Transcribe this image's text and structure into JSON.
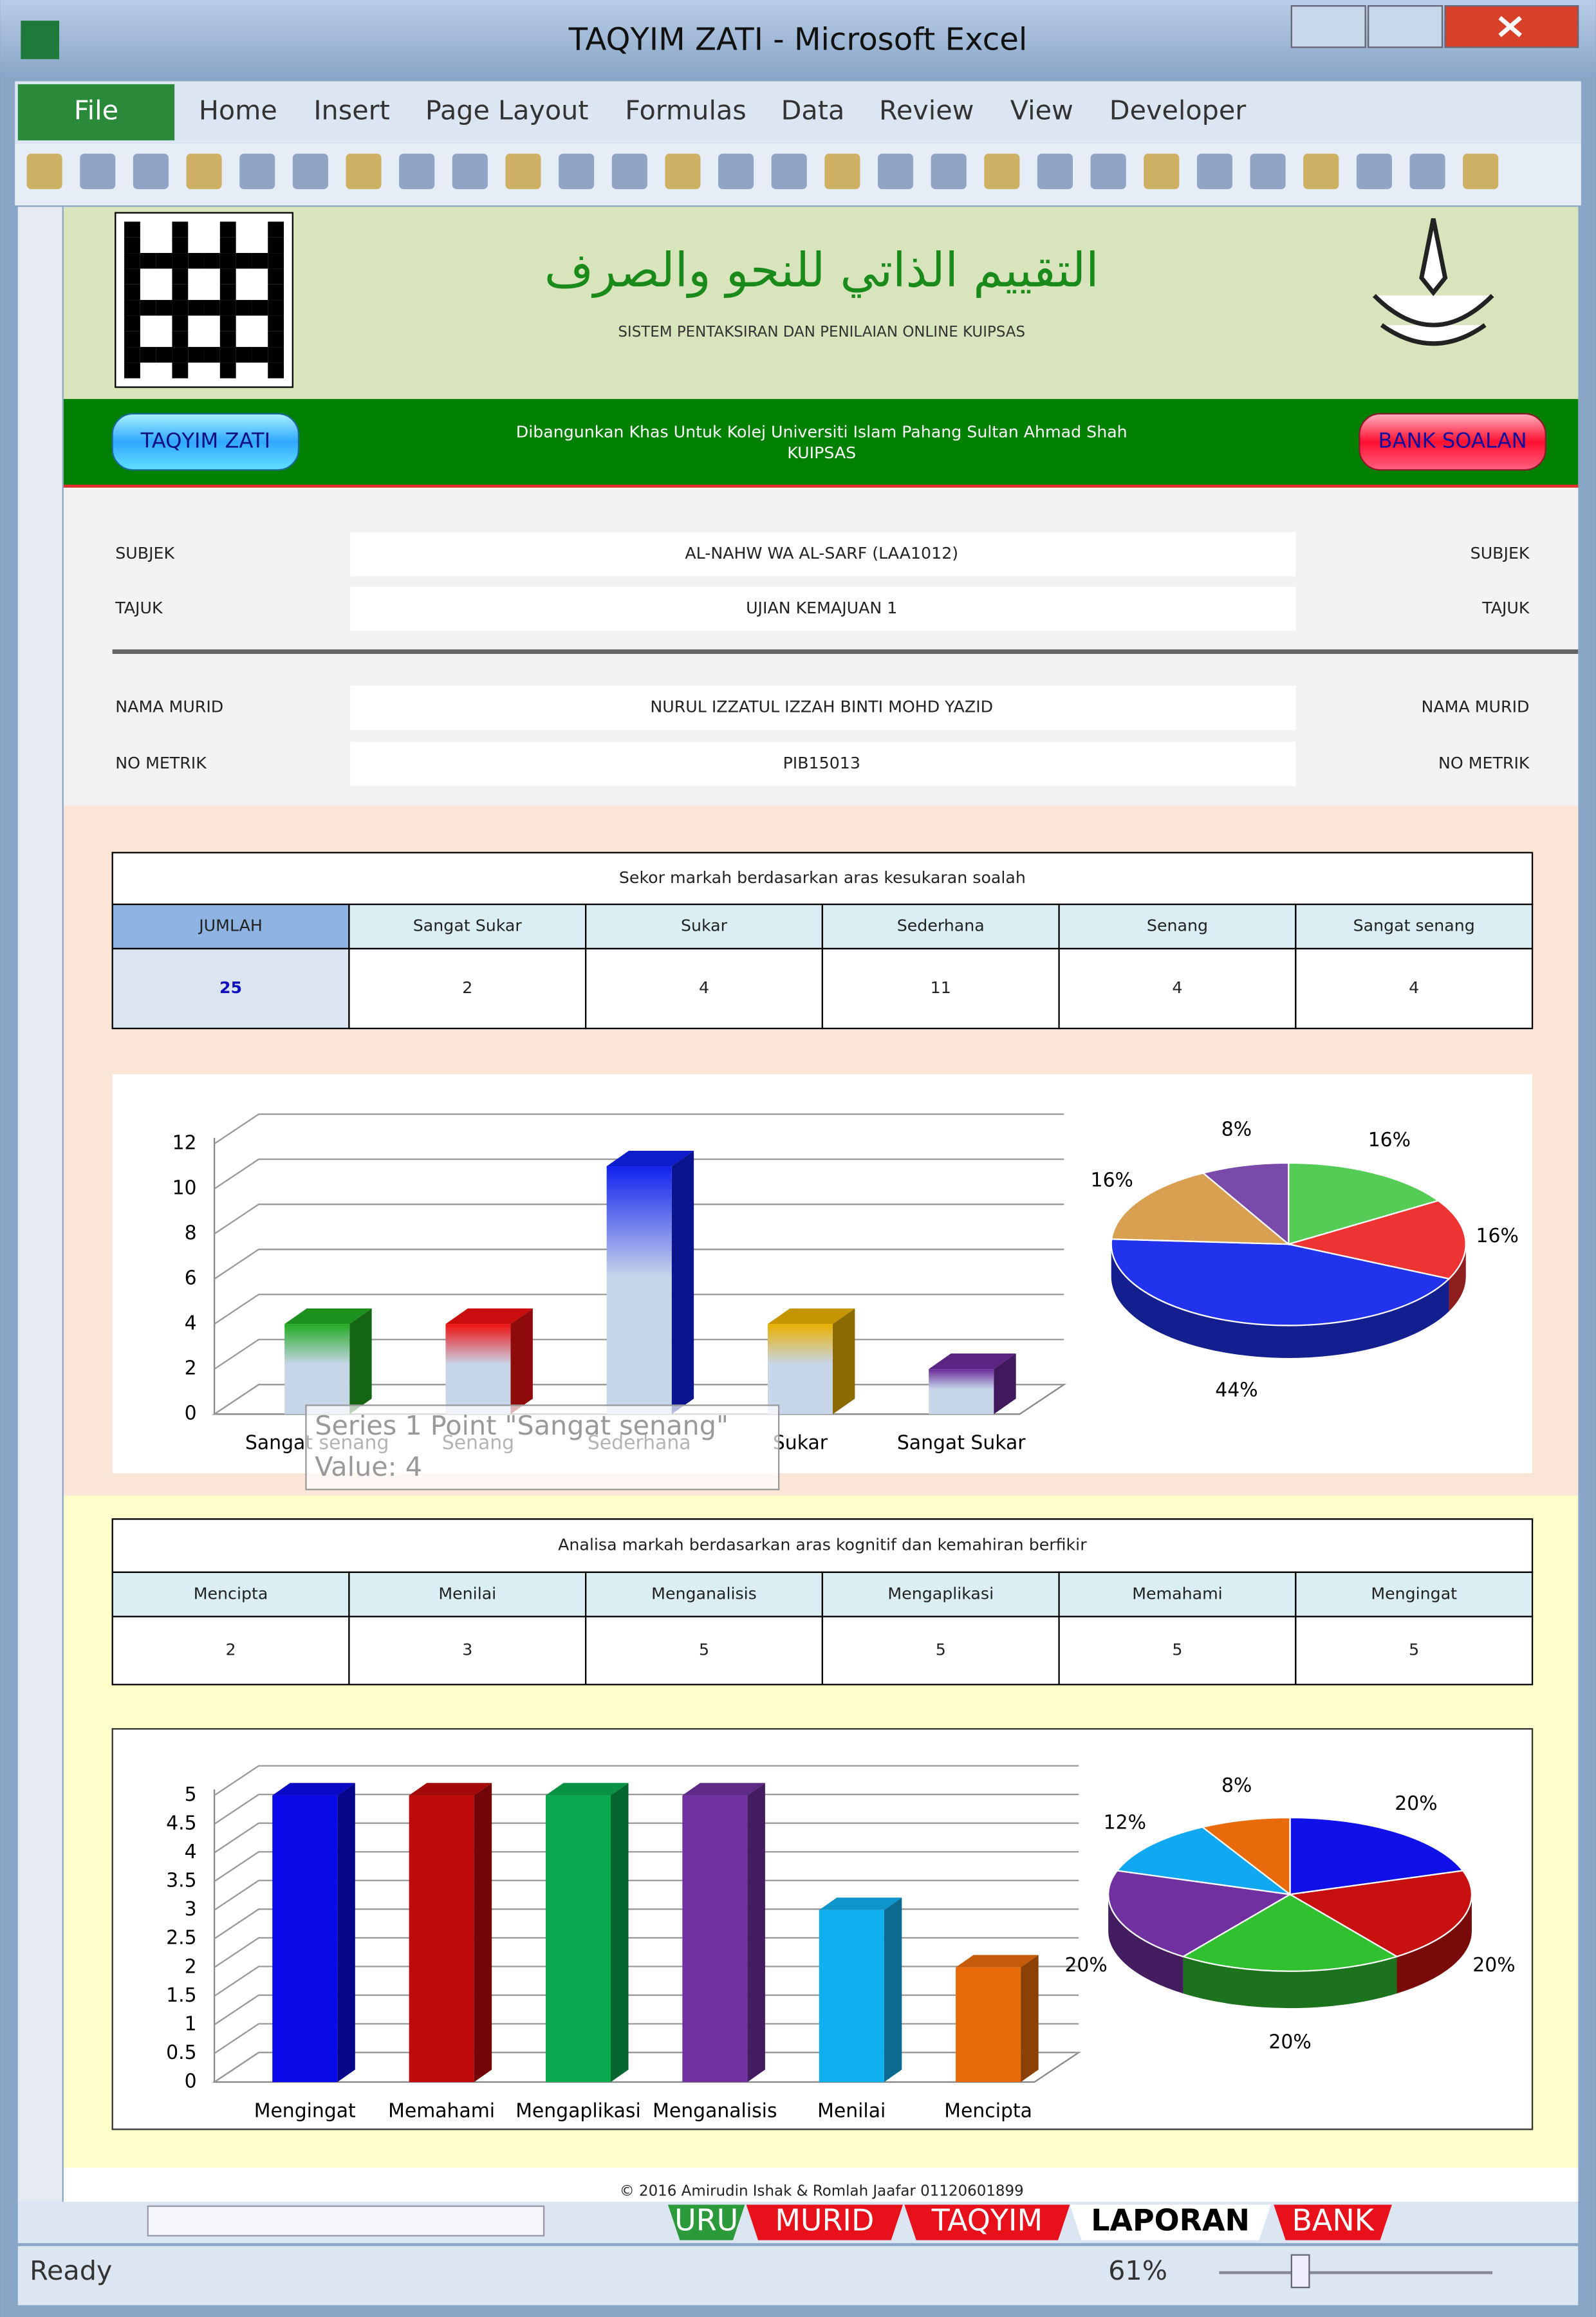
{
  "window": {
    "title": "TAQYIM ZATI  -  Microsoft Excel"
  },
  "ribbon": {
    "file": "File",
    "tabs": [
      "Home",
      "Insert",
      "Page Layout",
      "Formulas",
      "Data",
      "Review",
      "View",
      "Developer"
    ]
  },
  "header": {
    "title_ar": "التقييم الذاتي للنحو والصرف",
    "subtitle": "SISTEM PENTAKSIRAN DAN PENILAIAN ONLINE KUIPSAS",
    "button_left": "TAQYIM  ZATI",
    "button_right": "BANK SOALAN",
    "info": [
      "Dibangunkan Khas Untuk Kolej Universiti Islam Pahang Sultan Ahmad Shah",
      "KUIPSAS"
    ]
  },
  "form": {
    "rows": [
      {
        "label": "SUBJEK",
        "value": "AL-NAHW WA AL-SARF (LAA1012)"
      },
      {
        "label": "TAJUK",
        "value": "UJIAN KEMAJUAN 1"
      },
      {
        "label": "NAMA MURID",
        "value": "NURUL IZZATUL IZZAH BINTI MOHD YAZID"
      },
      {
        "label": "NO METRIK",
        "value": "PIB15013"
      }
    ]
  },
  "table1": {
    "title": "Sekor markah berdasarkan aras kesukaran soalah",
    "headers": [
      "JUMLAH",
      "Sangat Sukar",
      "Sukar",
      "Sederhana",
      "Senang",
      "Sangat senang"
    ],
    "values": [
      25,
      2,
      4,
      11,
      4,
      4
    ]
  },
  "table2": {
    "title": "Analisa markah berdasarkan aras kognitif dan kemahiran berfikir",
    "headers": [
      "Mencipta",
      "Menilai",
      "Menganalisis",
      "Mengaplikasi",
      "Memahami",
      "Mengingat"
    ],
    "values": [
      2,
      3,
      5,
      5,
      5,
      5
    ]
  },
  "chart_data": [
    {
      "type": "bar",
      "categories": [
        "Sangat senang",
        "Senang",
        "Sederhana",
        "Sukar",
        "Sangat Sukar"
      ],
      "values": [
        4,
        4,
        11,
        4,
        2
      ],
      "colors": [
        "#22aa22",
        "#ee1111",
        "#1122ee",
        "#e8b000",
        "#6a2a9a"
      ],
      "fill_style": "gradient",
      "ylim": [
        0,
        12
      ],
      "yticks": [
        0,
        2,
        4,
        6,
        8,
        10,
        12
      ],
      "grid": true,
      "tooltip": [
        "Series 1 Point \"Sangat senang\"",
        "Value: 4"
      ]
    },
    {
      "type": "pie",
      "categories": [
        "Sangat senang",
        "Senang",
        "Sederhana",
        "Sukar",
        "Sangat Sukar"
      ],
      "values": [
        16,
        16,
        44,
        16,
        8
      ],
      "value_labels": [
        "16%",
        "16%",
        "44%",
        "16%",
        "8%"
      ],
      "colors": [
        "#55cc55",
        "#ee3333",
        "#2233ee",
        "#d8a050",
        "#7a4aaa"
      ]
    },
    {
      "type": "bar",
      "categories": [
        "Mengingat",
        "Memahami",
        "Mengaplikasi",
        "Menganalisis",
        "Menilai",
        "Mencipta"
      ],
      "values": [
        5,
        5,
        5,
        5,
        3,
        2
      ],
      "colors": [
        "#0a0ae8",
        "#c00a0a",
        "#0aaa50",
        "#7030a0",
        "#10b0f0",
        "#e86a0a"
      ],
      "fill_style": "solid",
      "ylim": [
        0,
        5
      ],
      "yticks": [
        0,
        0.5,
        1,
        1.5,
        2,
        2.5,
        3,
        3.5,
        4,
        4.5,
        5
      ],
      "grid": true
    },
    {
      "type": "pie",
      "categories": [
        "Mengingat",
        "Memahami",
        "Mengaplikasi",
        "Menganalisis",
        "Menilai",
        "Mencipta"
      ],
      "values": [
        20,
        20,
        20,
        20,
        12,
        8
      ],
      "value_labels": [
        "20%",
        "20%",
        "20%",
        "20%",
        "12%",
        "8%"
      ],
      "colors": [
        "#1010e8",
        "#c81010",
        "#30c030",
        "#7030a0",
        "#10a8f0",
        "#e86a0a"
      ]
    }
  ],
  "footer": "© 2016 Amirudin Ishak & Romlah Jaafar 01120601899",
  "sheet_tabs": [
    "URU",
    "MURID",
    "TAQYIM",
    "LAPORAN",
    "BANK"
  ],
  "status": {
    "ready": "Ready",
    "zoom": "61%"
  }
}
